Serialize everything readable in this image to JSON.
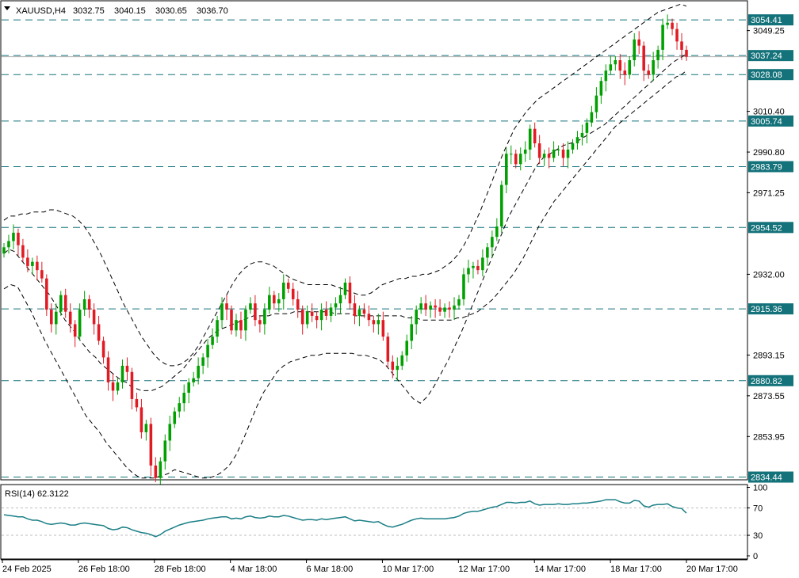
{
  "header": {
    "symbol": "XAUUSD,H4",
    "open": "3032.75",
    "high": "3040.15",
    "low": "3030.65",
    "close": "3036.70"
  },
  "indicator": {
    "label": "RSI(14) 62.3122"
  },
  "colors": {
    "bull": "#26a269",
    "bull_candle": "#00a000",
    "bear": "#e01b24",
    "level_line": "#14727a",
    "band": "#000000",
    "rsi": "#1a7f86",
    "tag_bg": "#14727a"
  },
  "chart_data": [
    {
      "type": "candlestick",
      "title": "",
      "x_labels": [
        "24 Feb 2025",
        "26 Feb 18:00",
        "28 Feb 18:00",
        "4 Mar 18:00",
        "6 Mar 18:00",
        "10 Mar 17:00",
        "12 Mar 17:00",
        "14 Mar 17:00",
        "18 Mar 17:00",
        "20 Mar 17:00"
      ],
      "y_ticks": [
        "3049.25",
        "3010.40",
        "2990.80",
        "2971.25",
        "2932.00",
        "2893.15",
        "2873.55",
        "2853.95"
      ],
      "ylim": [
        2833.5,
        3063.2
      ],
      "levels": [
        "3054.41",
        "3037.24",
        "3028.08",
        "3005.74",
        "2983.79",
        "2954.52",
        "2915.36",
        "2880.82",
        "2834.44"
      ],
      "close": [
        2945,
        2948,
        2952,
        2946,
        2940,
        2936,
        2938,
        2934,
        2930,
        2915,
        2908,
        2914,
        2922,
        2914,
        2908,
        2902,
        2915,
        2920,
        2915,
        2908,
        2900,
        2892,
        2880,
        2876,
        2880,
        2888,
        2885,
        2872,
        2868,
        2856,
        2860,
        2840,
        2834,
        2842,
        2852,
        2860,
        2866,
        2870,
        2875,
        2880,
        2882,
        2888,
        2892,
        2898,
        2902,
        2910,
        2918,
        2915,
        2905,
        2910,
        2905,
        2915,
        2918,
        2910,
        2908,
        2915,
        2922,
        2918,
        2920,
        2928,
        2925,
        2920,
        2915,
        2908,
        2914,
        2912,
        2910,
        2915,
        2912,
        2916,
        2918,
        2922,
        2928,
        2918,
        2912,
        2915,
        2913,
        2910,
        2908,
        2910,
        2902,
        2890,
        2886,
        2888,
        2893,
        2900,
        2908,
        2915,
        2918,
        2915,
        2917,
        2916,
        2914,
        2916,
        2915,
        2917,
        2920,
        2932,
        2935,
        2936,
        2934,
        2940,
        2945,
        2950,
        2955,
        2975,
        2990,
        2990,
        2985,
        2990,
        2992,
        3002,
        2995,
        2988,
        2990,
        2988,
        2992,
        2992,
        2988,
        2992,
        2995,
        2998,
        3000,
        3005,
        3010,
        3018,
        3025,
        3030,
        3033,
        3035,
        3030,
        3028,
        3035,
        3045,
        3042,
        3030,
        3028,
        3035,
        3040,
        3052,
        3053,
        3050,
        3044,
        3040,
        3036.7
      ],
      "bb_mid": [
        2942,
        2944,
        2943,
        2940,
        2937,
        2934,
        2931,
        2928,
        2925,
        2922,
        2918,
        2914,
        2910,
        2907,
        2904,
        2900,
        2897,
        2894,
        2892,
        2889,
        2887,
        2885,
        2883,
        2881,
        2880,
        2878,
        2877,
        2876,
        2876,
        2876,
        2877,
        2878,
        2880,
        2882,
        2884,
        2886,
        2889,
        2892,
        2895,
        2898,
        2901,
        2903,
        2905,
        2906,
        2907,
        2908,
        2909,
        2910,
        2911,
        2912,
        2912,
        2912,
        2912,
        2913,
        2913,
        2913,
        2913,
        2914,
        2914,
        2914,
        2914,
        2914,
        2914,
        2914,
        2914,
        2913,
        2913,
        2913,
        2913,
        2912,
        2912,
        2912,
        2912,
        2912,
        2912,
        2912,
        2912,
        2912,
        2912,
        2911,
        2911,
        2911,
        2910,
        2910,
        2910,
        2910,
        2910,
        2910,
        2910,
        2911,
        2911,
        2912,
        2913,
        2914,
        2916,
        2918,
        2920,
        2923,
        2926,
        2929,
        2932,
        2936,
        2940,
        2945,
        2950,
        2955,
        2959,
        2963,
        2967,
        2970,
        2973,
        2976,
        2979,
        2982,
        2985,
        2988,
        2991,
        2994,
        2997,
        3000,
        3003,
        3005,
        3007,
        3009,
        3011,
        3013,
        3015,
        3017,
        3019,
        3021,
        3023,
        3025,
        3027,
        3028,
        3030
      ],
      "bb_upper": [
        2958,
        2960,
        2960,
        2961,
        2961,
        2962,
        2962,
        2962,
        2963,
        2963,
        2962,
        2961,
        2960,
        2958,
        2955,
        2951,
        2946,
        2941,
        2935,
        2929,
        2923,
        2917,
        2912,
        2907,
        2902,
        2898,
        2894,
        2891,
        2889,
        2888,
        2888,
        2889,
        2891,
        2894,
        2898,
        2903,
        2908,
        2913,
        2918,
        2923,
        2928,
        2932,
        2935,
        2937,
        2938,
        2938,
        2937,
        2936,
        2934,
        2932,
        2930,
        2929,
        2928,
        2927,
        2927,
        2927,
        2927,
        2927,
        2926,
        2925,
        2924,
        2923,
        2922,
        2922,
        2923,
        2925,
        2927,
        2928,
        2929,
        2930,
        2930,
        2931,
        2931,
        2932,
        2932,
        2933,
        2934,
        2936,
        2938,
        2941,
        2945,
        2950,
        2956,
        2962,
        2969,
        2976,
        2983,
        2990,
        2996,
        3002,
        3006,
        3010,
        3013,
        3016,
        3018,
        3020,
        3022,
        3024,
        3026,
        3028,
        3030,
        3032,
        3034,
        3036,
        3038,
        3040,
        3042,
        3044,
        3046,
        3048,
        3050,
        3052,
        3054,
        3056,
        3058,
        3059,
        3060,
        3061,
        3062,
        3061
      ],
      "bb_lower": [
        2925,
        2927,
        2926,
        2920,
        2914,
        2907,
        2900,
        2894,
        2888,
        2882,
        2876,
        2870,
        2864,
        2860,
        2856,
        2851,
        2847,
        2843,
        2839,
        2836,
        2834,
        2834,
        2834,
        2835,
        2836,
        2838,
        2837,
        2836,
        2835,
        2834,
        2834,
        2835,
        2837,
        2840,
        2845,
        2852,
        2860,
        2868,
        2875,
        2880,
        2885,
        2888,
        2890,
        2891,
        2892,
        2893,
        2893,
        2894,
        2894,
        2894,
        2894,
        2894,
        2893,
        2893,
        2892,
        2891,
        2888,
        2884,
        2880,
        2876,
        2872,
        2870,
        2873,
        2878,
        2884,
        2890,
        2897,
        2904,
        2912,
        2920,
        2928,
        2936,
        2944,
        2952,
        2960,
        2966,
        2972,
        2978,
        2984,
        2988,
        2990,
        2992,
        2994,
        2995,
        2996,
        2998,
        3000,
        3002,
        3004,
        3007,
        3010,
        3013,
        3016,
        3019,
        3022,
        3025,
        3028,
        3031,
        3034,
        3036,
        3038
      ],
      "rsi": {
        "levels": [
          "100",
          "70",
          "30",
          "0"
        ],
        "values": [
          60,
          59,
          58,
          57,
          57,
          54,
          52,
          52,
          50,
          47,
          46,
          47,
          48,
          47,
          45,
          45,
          47,
          48,
          47,
          46,
          45,
          44,
          40,
          38,
          39,
          42,
          41,
          38,
          36,
          34,
          33,
          31,
          28,
          31,
          36,
          39,
          42,
          45,
          47,
          49,
          50,
          51,
          52,
          54,
          55,
          56,
          57,
          57,
          54,
          55,
          54,
          57,
          58,
          56,
          55,
          56,
          58,
          57,
          57,
          59,
          58,
          56,
          54,
          52,
          53,
          53,
          52,
          54,
          53,
          54,
          55,
          56,
          57,
          54,
          51,
          52,
          51,
          50,
          49,
          50,
          46,
          43,
          42,
          44,
          46,
          49,
          52,
          54,
          55,
          54,
          54,
          54,
          54,
          54,
          55,
          56,
          58,
          62,
          64,
          65,
          65,
          67,
          69,
          71,
          72,
          75,
          78,
          78,
          77,
          78,
          78,
          80,
          76,
          74,
          75,
          75,
          75,
          76,
          75,
          75,
          76,
          76,
          77,
          77,
          78,
          79,
          80,
          82,
          82,
          82,
          79,
          77,
          77,
          81,
          80,
          73,
          71,
          74,
          75,
          75,
          76,
          72,
          70,
          69,
          62.3
        ]
      }
    }
  ]
}
